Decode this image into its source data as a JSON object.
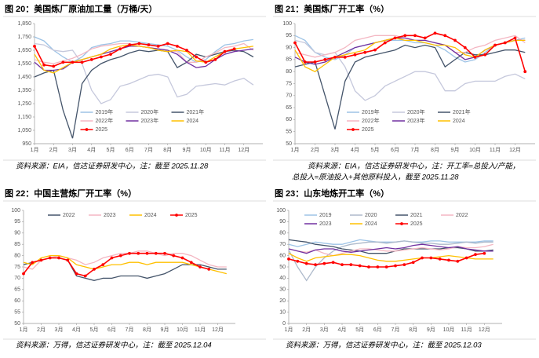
{
  "chart_data": [
    {
      "type": "line",
      "title": "图 20：美国炼厂原油加工量（万桶/天）",
      "source": [
        "资料来源：EIA，信达证券研发中心，注：截至 2025.11.28"
      ],
      "x": [
        1,
        1.5,
        2,
        2.5,
        3,
        3.5,
        4,
        4.5,
        5,
        5.5,
        6,
        6.5,
        7,
        7.5,
        8,
        8.5,
        9,
        9.5,
        10,
        10.5,
        11,
        11.5,
        12,
        12.5
      ],
      "xlim": [
        1,
        13
      ],
      "xticks": [
        {
          "value": 1,
          "label": "1月"
        },
        {
          "value": 2,
          "label": "2月"
        },
        {
          "value": 3,
          "label": "3月"
        },
        {
          "value": 4,
          "label": "4月"
        },
        {
          "value": 5,
          "label": "5月"
        },
        {
          "value": 6,
          "label": "6月"
        },
        {
          "value": 7,
          "label": "7月"
        },
        {
          "value": 8,
          "label": "8月"
        },
        {
          "value": 9,
          "label": "9月"
        },
        {
          "value": 10,
          "label": "10月"
        },
        {
          "value": 11,
          "label": "11月"
        },
        {
          "value": 12,
          "label": "12月"
        }
      ],
      "ylim": [
        950,
        1850
      ],
      "yticks": [
        950,
        {
          "value": 1050,
          "label": "1,050"
        },
        {
          "value": 1150,
          "label": "1,150"
        },
        {
          "value": 1250,
          "label": "1,250"
        },
        {
          "value": 1350,
          "label": "1,350"
        },
        {
          "value": 1450,
          "label": "1,450"
        },
        {
          "value": 1550,
          "label": "1,550"
        },
        {
          "value": 1650,
          "label": "1,650"
        },
        {
          "value": 1750,
          "label": "1,750"
        },
        {
          "value": 1850,
          "label": "1,850"
        }
      ],
      "legend": "lower center",
      "series": [
        {
          "name": "2019年",
          "color": "#9dc3e6",
          "values": [
            1750,
            1720,
            1650,
            1600,
            1560,
            1600,
            1670,
            1690,
            1700,
            1720,
            1720,
            1710,
            1700,
            1690,
            1680,
            1650,
            1600,
            1560,
            1580,
            1640,
            1690,
            1700,
            1720,
            1730
          ]
        },
        {
          "name": "2020年",
          "color": "#c5c8dc",
          "values": [
            1700,
            1690,
            1650,
            1640,
            1650,
            1550,
            1350,
            1250,
            1280,
            1380,
            1400,
            1430,
            1460,
            1470,
            1450,
            1300,
            1320,
            1380,
            1390,
            1400,
            1390,
            1420,
            1440,
            1390
          ]
        },
        {
          "name": "2021年",
          "color": "#44546a",
          "values": [
            1450,
            1480,
            1500,
            1200,
            990,
            1400,
            1500,
            1550,
            1580,
            1600,
            1630,
            1650,
            1640,
            1650,
            1640,
            1520,
            1560,
            1620,
            1600,
            1620,
            1640,
            1650,
            1640,
            1600
          ]
        },
        {
          "name": "2022年",
          "color": "#f4b6c2",
          "values": [
            1580,
            1560,
            1550,
            1570,
            1590,
            1620,
            1660,
            1680,
            1690,
            1700,
            1700,
            1680,
            1670,
            1660,
            1650,
            1640,
            1560,
            1560,
            1600,
            1630,
            1670,
            1680,
            1700,
            1650
          ]
        },
        {
          "name": "2023年",
          "color": "#7030a0",
          "values": [
            1560,
            1500,
            1500,
            1510,
            1560,
            1580,
            1600,
            1620,
            1640,
            1660,
            1680,
            1680,
            1670,
            1660,
            1650,
            1620,
            1560,
            1520,
            1530,
            1580,
            1620,
            1640,
            1650,
            1660
          ]
        },
        {
          "name": "2024",
          "color": "#ffc000",
          "values": [
            1620,
            1500,
            1480,
            1520,
            1560,
            1580,
            1600,
            1620,
            1660,
            1680,
            1690,
            1680,
            1670,
            1650,
            1640,
            1650,
            1640,
            1570,
            1560,
            1600,
            1640,
            1660,
            1670,
            1680
          ]
        },
        {
          "name": "2025",
          "color": "#ff0000",
          "markers": true,
          "values": [
            1680,
            1540,
            1530,
            1560,
            1560,
            1560,
            1580,
            1600,
            1620,
            1660,
            1690,
            1700,
            1690,
            1680,
            1700,
            1680,
            1650,
            1600,
            1560,
            1580,
            1640,
            1660,
            null,
            null
          ]
        }
      ]
    },
    {
      "type": "line",
      "title": "图 21：美国炼厂开工率（%）",
      "source": [
        "资料来源：EIA，信达证券研发中心，注：开工率=总投入/产能，",
        "总投入=原油投入+其他原料投入，截至 2025.11.28"
      ],
      "x": [
        1,
        1.5,
        2,
        2.5,
        3,
        3.5,
        4,
        4.5,
        5,
        5.5,
        6,
        6.5,
        7,
        7.5,
        8,
        8.5,
        9,
        9.5,
        10,
        10.5,
        11,
        11.5,
        12,
        12.5
      ],
      "xlim": [
        1,
        13
      ],
      "xticks": [
        {
          "value": 1,
          "label": "1月"
        },
        {
          "value": 2,
          "label": "2月"
        },
        {
          "value": 3,
          "label": "3月"
        },
        {
          "value": 4,
          "label": "4月"
        },
        {
          "value": 5,
          "label": "5月"
        },
        {
          "value": 6,
          "label": "6月"
        },
        {
          "value": 7,
          "label": "7月"
        },
        {
          "value": 8,
          "label": "8月"
        },
        {
          "value": 9,
          "label": "9月"
        },
        {
          "value": 10,
          "label": "10月"
        },
        {
          "value": 11,
          "label": "11月"
        },
        {
          "value": 12,
          "label": "12月"
        }
      ],
      "ylim": [
        50,
        100
      ],
      "yticks": [
        50,
        55,
        60,
        65,
        70,
        75,
        80,
        85,
        90,
        95,
        100
      ],
      "legend": "lower center",
      "series": [
        {
          "name": "2019年",
          "color": "#9dc3e6",
          "values": [
            95,
            93,
            88,
            86,
            85,
            87,
            90,
            91,
            92,
            93,
            93,
            93,
            92,
            92,
            91,
            89,
            86,
            84,
            85,
            88,
            91,
            92,
            93,
            94
          ]
        },
        {
          "name": "2020年",
          "color": "#c5c8dc",
          "values": [
            93,
            92,
            88,
            87,
            88,
            82,
            72,
            68,
            70,
            74,
            76,
            78,
            80,
            80,
            79,
            72,
            72,
            75,
            76,
            76,
            76,
            78,
            79,
            77
          ]
        },
        {
          "name": "2021年",
          "color": "#44546a",
          "values": [
            82,
            83,
            84,
            70,
            56,
            76,
            84,
            86,
            87,
            88,
            89,
            91,
            90,
            91,
            90,
            82,
            85,
            88,
            87,
            87,
            88,
            89,
            89,
            88
          ]
        },
        {
          "name": "2022年",
          "color": "#f4b6c2",
          "values": [
            88,
            87,
            86,
            87,
            88,
            90,
            93,
            94,
            95,
            95,
            95,
            94,
            93,
            93,
            92,
            91,
            88,
            88,
            90,
            91,
            93,
            94,
            95,
            92
          ]
        },
        {
          "name": "2023年",
          "color": "#7030a0",
          "values": [
            86,
            84,
            83,
            84,
            86,
            88,
            90,
            91,
            92,
            93,
            94,
            94,
            93,
            93,
            92,
            91,
            88,
            85,
            86,
            89,
            91,
            92,
            93,
            93
          ]
        },
        {
          "name": "2024",
          "color": "#ffc000",
          "values": [
            89,
            82,
            80,
            83,
            86,
            87,
            88,
            89,
            92,
            93,
            94,
            93,
            93,
            92,
            91,
            91,
            90,
            87,
            86,
            89,
            91,
            92,
            93,
            93
          ]
        },
        {
          "name": "2025",
          "color": "#ff0000",
          "markers": true,
          "values": [
            92,
            84,
            84,
            85,
            86,
            86,
            87,
            88,
            89,
            92,
            94,
            95,
            95,
            94,
            96,
            95,
            93,
            90,
            86,
            87,
            91,
            92,
            94,
            80
          ]
        }
      ]
    },
    {
      "type": "line",
      "title": "图 22：中国主营炼厂开工率（%）",
      "source": [
        "资料来源：万得，信达证券研发中心，注：截至 2025.12.04"
      ],
      "x": [
        1,
        1.5,
        2,
        2.5,
        3,
        3.5,
        4,
        4.5,
        5,
        5.5,
        6,
        6.5,
        7,
        7.5,
        8,
        8.5,
        9,
        9.5,
        10,
        10.5,
        11,
        11.5,
        12,
        12.5
      ],
      "xlim": [
        1,
        13
      ],
      "xticks": [
        {
          "value": 1,
          "label": "1月"
        },
        {
          "value": 2,
          "label": "2月"
        },
        {
          "value": 3,
          "label": "3月"
        },
        {
          "value": 4,
          "label": "4月"
        },
        {
          "value": 5,
          "label": "5月"
        },
        {
          "value": 6,
          "label": "6月"
        },
        {
          "value": 7,
          "label": "7月"
        },
        {
          "value": 8,
          "label": "8月"
        },
        {
          "value": 9,
          "label": "9月"
        },
        {
          "value": 10,
          "label": "10月"
        },
        {
          "value": 11,
          "label": "11月"
        },
        {
          "value": 12,
          "label": "12月"
        }
      ],
      "ylim": [
        50,
        100
      ],
      "yticks": [
        50,
        55,
        60,
        65,
        70,
        75,
        80,
        85,
        90,
        95,
        100
      ],
      "legend": "upper center",
      "series": [
        {
          "name": "2022",
          "color": "#44546a",
          "values": [
            76,
            77,
            78,
            79,
            79,
            78,
            71,
            70,
            69,
            70,
            70,
            71,
            71,
            71,
            70,
            71,
            72,
            74,
            76,
            76,
            76,
            75,
            74,
            74
          ]
        },
        {
          "name": "2023",
          "color": "#f4b6c2",
          "values": [
            75,
            74,
            78,
            79,
            80,
            79,
            78,
            76,
            77,
            79,
            80,
            81,
            81,
            82,
            82,
            81,
            80,
            81,
            81,
            80,
            78,
            76,
            75,
            75
          ]
        },
        {
          "name": "2024",
          "color": "#ffc000",
          "values": [
            77,
            76,
            79,
            80,
            80,
            79,
            76,
            75,
            74,
            75,
            76,
            76,
            77,
            77,
            76,
            77,
            77,
            77,
            77,
            76,
            75,
            74,
            73,
            72
          ]
        },
        {
          "name": "2025",
          "color": "#ff0000",
          "markers": true,
          "values": [
            72,
            77,
            78,
            79,
            79,
            78,
            72,
            71,
            74,
            76,
            79,
            80,
            81,
            81,
            81,
            81,
            81,
            80,
            79,
            77,
            75,
            74,
            null,
            null
          ]
        }
      ]
    },
    {
      "type": "line",
      "title": "图 23：山东地炼开工率（%）",
      "source": [
        "资料来源：万得，信达证券研发中心，注：截至 2025.12.03"
      ],
      "x": [
        1,
        1.5,
        2,
        2.5,
        3,
        3.5,
        4,
        4.5,
        5,
        5.5,
        6,
        6.5,
        7,
        7.5,
        8,
        8.5,
        9,
        9.5,
        10,
        10.5,
        11,
        11.5,
        12,
        12.5
      ],
      "xlim": [
        1,
        13
      ],
      "xticks": [
        {
          "value": 1,
          "label": "1月"
        },
        {
          "value": 2,
          "label": "2月"
        },
        {
          "value": 3,
          "label": "3月"
        },
        {
          "value": 4,
          "label": "4月"
        },
        {
          "value": 5,
          "label": "5月"
        },
        {
          "value": 6,
          "label": "6月"
        },
        {
          "value": 7,
          "label": "7月"
        },
        {
          "value": 8,
          "label": "8月"
        },
        {
          "value": 9,
          "label": "9月"
        },
        {
          "value": 10,
          "label": "10月"
        },
        {
          "value": 11,
          "label": "11月"
        },
        {
          "value": 12,
          "label": "12月"
        }
      ],
      "ylim": [
        0,
        100
      ],
      "yticks": [
        0,
        10,
        20,
        30,
        40,
        50,
        60,
        70,
        80,
        90,
        100
      ],
      "legend": "upper center",
      "series": [
        {
          "name": "2019",
          "color": "#9dc3e6",
          "values": [
            70,
            68,
            70,
            72,
            71,
            70,
            70,
            72,
            74,
            73,
            72,
            72,
            72,
            73,
            72,
            72,
            73,
            73,
            72,
            72,
            72,
            72,
            73,
            73
          ]
        },
        {
          "name": "2020",
          "color": "#adb9ca",
          "values": [
            65,
            50,
            38,
            50,
            58,
            64,
            68,
            70,
            71,
            72,
            72,
            71,
            72,
            73,
            72,
            71,
            71,
            70,
            70,
            71,
            72,
            71,
            72,
            72
          ]
        },
        {
          "name": "2021",
          "color": "#44546a",
          "values": [
            74,
            73,
            72,
            70,
            69,
            68,
            66,
            65,
            64,
            62,
            62,
            62,
            64,
            66,
            66,
            66,
            66,
            66,
            67,
            67,
            66,
            64,
            64,
            65
          ]
        },
        {
          "name": "2022",
          "color": "#f4b6c2",
          "values": [
            66,
            64,
            63,
            65,
            62,
            60,
            62,
            64,
            66,
            66,
            65,
            64,
            64,
            65,
            66,
            67,
            66,
            65,
            66,
            68,
            67,
            67,
            68,
            70
          ]
        },
        {
          "name": "2023",
          "color": "#7030a0",
          "values": [
            66,
            64,
            62,
            65,
            66,
            66,
            64,
            63,
            64,
            65,
            66,
            67,
            66,
            67,
            69,
            70,
            69,
            68,
            67,
            68,
            66,
            65,
            64,
            64
          ]
        },
        {
          "name": "2024",
          "color": "#ffc000",
          "values": [
            62,
            58,
            55,
            58,
            59,
            60,
            61,
            61,
            60,
            58,
            56,
            55,
            55,
            56,
            57,
            58,
            58,
            59,
            60,
            59,
            58,
            57,
            57,
            57
          ]
        },
        {
          "name": "2025",
          "color": "#ff0000",
          "markers": true,
          "values": [
            57,
            55,
            53,
            52,
            53,
            54,
            52,
            52,
            51,
            50,
            50,
            50,
            51,
            52,
            54,
            58,
            58,
            57,
            56,
            55,
            58,
            61,
            62,
            null
          ]
        }
      ]
    }
  ]
}
